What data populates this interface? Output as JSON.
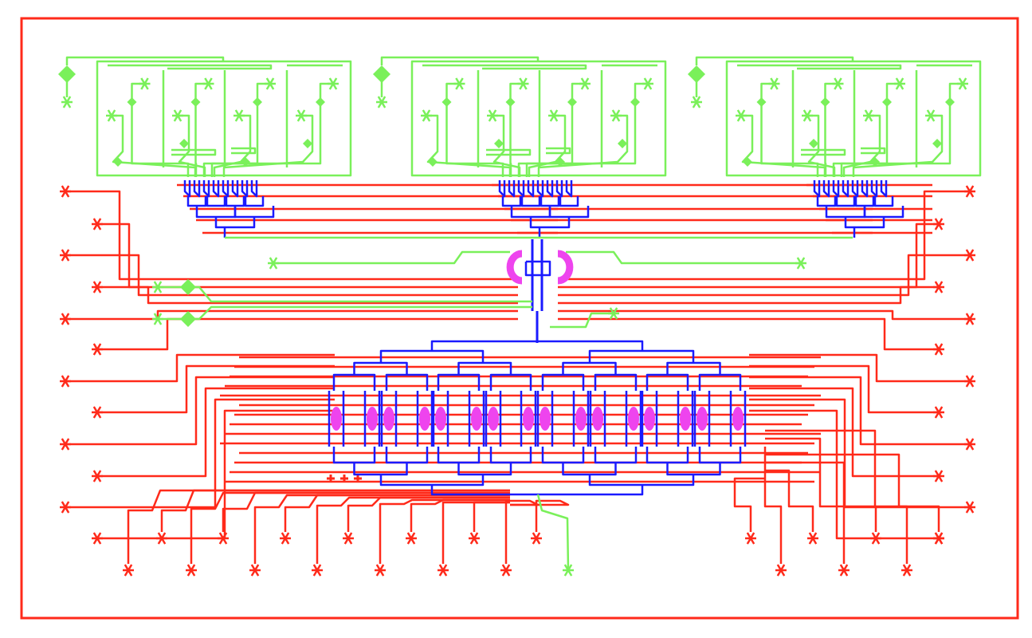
{
  "colors": {
    "background": "#ffffff",
    "control_layer": "#ff2a1a",
    "flow_layer": "#7af05a",
    "via_layer": "#1a1aff",
    "chamber": "#ee44ee"
  },
  "layout": {
    "flow_modules": 3,
    "chambers": 16,
    "left_ports": 12,
    "right_ports": 12,
    "bottom_ports_left": 14,
    "bottom_ports_right": 7
  }
}
